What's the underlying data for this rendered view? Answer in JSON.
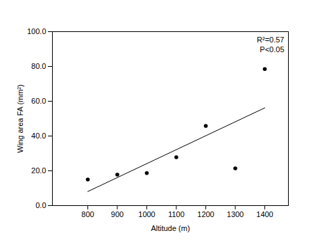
{
  "chart_data": {
    "type": "scatter",
    "x_label": "Altitude (m)",
    "y_label": "Wing area FA (mm²)",
    "x": [
      800,
      900,
      1000,
      1100,
      1200,
      1300,
      1400
    ],
    "values": [
      15.0,
      17.8,
      18.7,
      27.8,
      45.8,
      21.4,
      78.5
    ],
    "color": "#000000",
    "marker": "circle",
    "trend_line": {
      "x": [
        800,
        1400
      ],
      "values": [
        8.1,
        56.2
      ]
    },
    "annotations": [
      "R²=0.57",
      "P<0.05"
    ],
    "xlim": [
      680,
      1480
    ],
    "xticks": [
      800,
      900,
      1000,
      1100,
      1200,
      1300,
      1400
    ],
    "ylim": [
      0,
      100
    ],
    "yticks": [
      {
        "value": 0,
        "label": "0.0"
      },
      {
        "value": 20,
        "label": "20.0"
      },
      {
        "value": 40,
        "label": "40.0"
      },
      {
        "value": 60,
        "label": "60.0"
      },
      {
        "value": 80,
        "label": "80.0"
      },
      {
        "value": 100,
        "label": "100.0"
      }
    ],
    "grid": false
  }
}
